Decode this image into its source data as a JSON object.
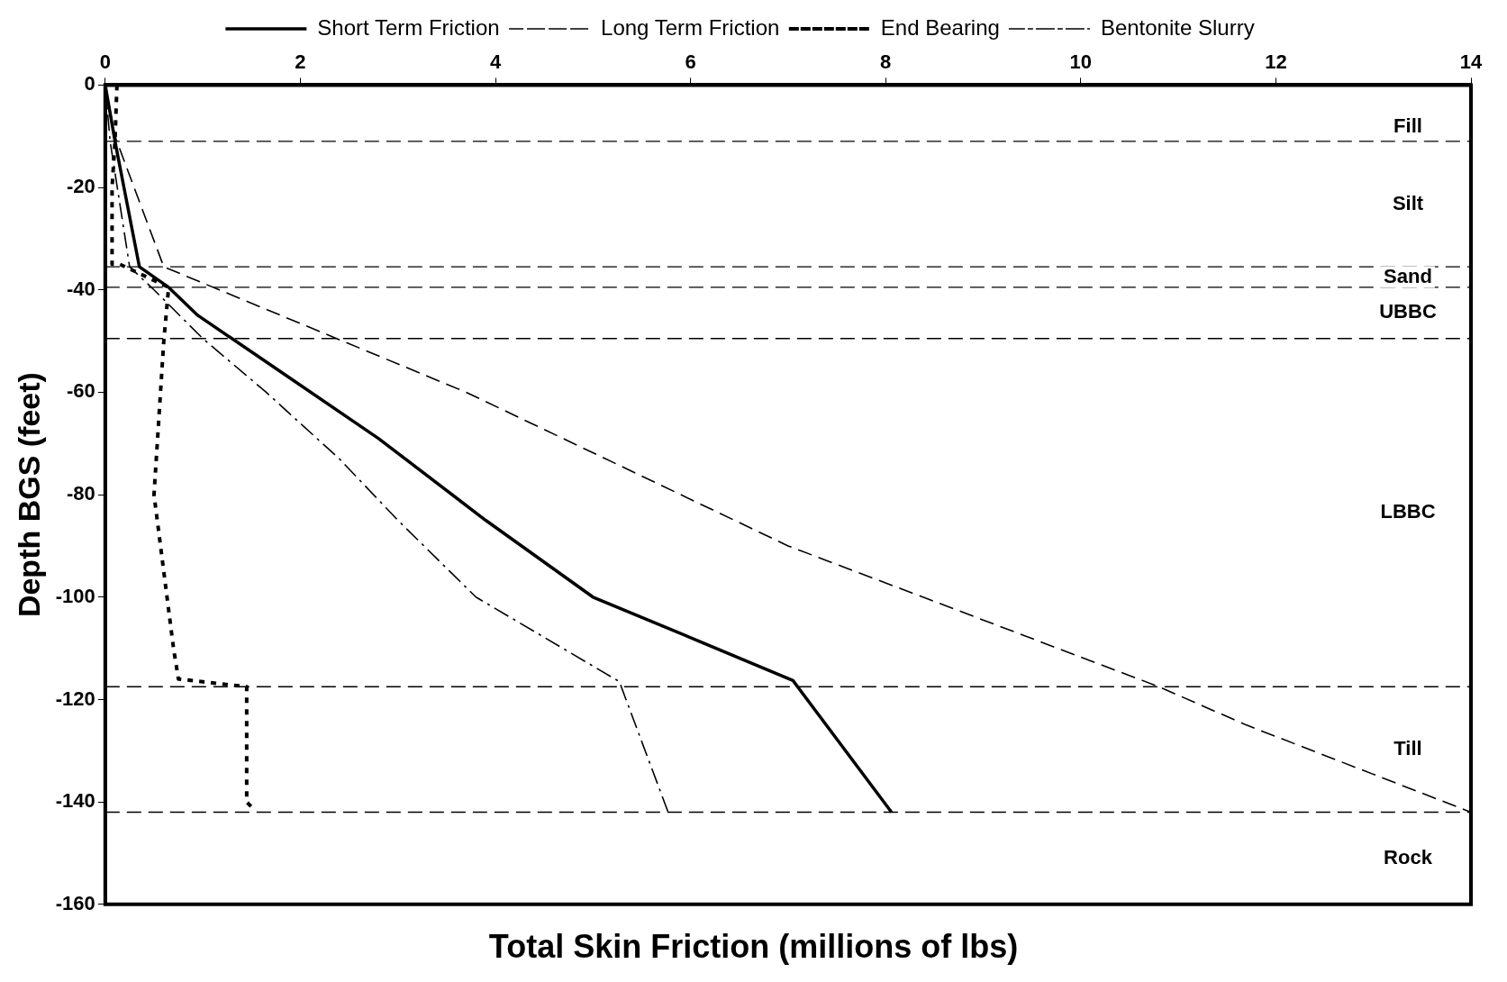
{
  "chart_data": {
    "type": "line",
    "xlabel": "Total Skin Friction (millions of lbs)",
    "ylabel": "Depth BGS (feet)",
    "xlim": [
      0,
      14
    ],
    "xticks": [
      0,
      2,
      4,
      6,
      8,
      10,
      12,
      14
    ],
    "ylim": [
      -160,
      0
    ],
    "yticks": [
      -160,
      -140,
      -120,
      -100,
      -80,
      -60,
      -40,
      -20,
      0
    ],
    "grid": false,
    "legend": "top",
    "marker": "none",
    "series": [
      {
        "name": "Short Term Friction",
        "color": "#000000",
        "line_style": "solid",
        "x": [
          0,
          0.1,
          0.35,
          0.65,
          0.95,
          1.8,
          2.8,
          3.9,
          5.0,
          6.2,
          7.05,
          8.06
        ],
        "values": [
          0,
          -11,
          -35.5,
          -39.5,
          -45,
          -56,
          -69,
          -85,
          -100,
          -109.5,
          -116.3,
          -142
        ]
      },
      {
        "name": "Long Term Friction",
        "color": "#000000",
        "line_style": "dashed",
        "x": [
          0,
          0.1,
          0.6,
          3.7,
          7.0,
          10.8,
          11.7,
          14
        ],
        "values": [
          0,
          -10,
          -35.5,
          -60,
          -90,
          -117.5,
          -125,
          -142
        ]
      },
      {
        "name": "End Bearing",
        "color": "#000000",
        "line_style": "dotted",
        "x": [
          0.12,
          0.1,
          0.07,
          0.07,
          0.15,
          0.65,
          0.6,
          0.5,
          0.7,
          0.75,
          1.45,
          1.45,
          1.5
        ],
        "values": [
          0,
          -11,
          -20,
          -35,
          -35,
          -39.5,
          -50,
          -80,
          -110,
          -116,
          -117.5,
          -140,
          -141
        ]
      },
      {
        "name": "Bentonite Slurry",
        "color": "#000000",
        "line_style": "dashdot",
        "x": [
          0,
          0.05,
          0.25,
          0.5,
          1.0,
          1.65,
          2.4,
          3.0,
          3.8,
          5.27,
          5.77
        ],
        "values": [
          0,
          -11,
          -35.5,
          -40,
          -49.5,
          -60,
          -73,
          -85,
          -100,
          -116.5,
          -142
        ]
      }
    ],
    "ref_lines": [
      {
        "axis": "y",
        "value": -11,
        "color": "#000000",
        "line_style": "dashed"
      },
      {
        "axis": "y",
        "value": -35.5,
        "color": "#000000",
        "line_style": "dashed"
      },
      {
        "axis": "y",
        "value": -39.5,
        "color": "#000000",
        "line_style": "dashed"
      },
      {
        "axis": "y",
        "value": -49.5,
        "color": "#000000",
        "line_style": "dashed"
      },
      {
        "axis": "y",
        "value": -117.5,
        "color": "#000000",
        "line_style": "dashed"
      },
      {
        "axis": "y",
        "value": -142,
        "color": "#000000",
        "line_style": "dashed"
      }
    ],
    "annotations": [
      "Fill",
      "Silt",
      "Sand",
      "UBBC",
      "LBBC",
      "Till",
      "Rock"
    ]
  }
}
